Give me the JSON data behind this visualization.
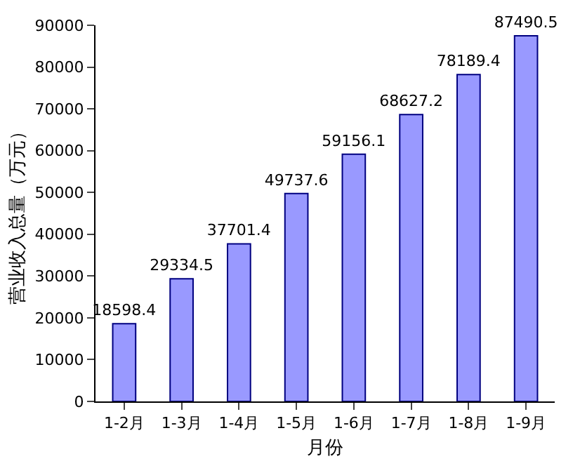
{
  "chart_data": {
    "type": "bar",
    "categories": [
      "1-2月",
      "1-3月",
      "1-4月",
      "1-5月",
      "1-6月",
      "1-7月",
      "1-8月",
      "1-9月"
    ],
    "values": [
      18598.4,
      29334.5,
      37701.4,
      49737.6,
      59156.1,
      68627.2,
      78189.4,
      87490.5
    ],
    "color": "#9999ff",
    "xlabel": "月份",
    "ylabel": "营业收入总量（万元）",
    "ylim": [
      0,
      90000
    ],
    "yticks": [
      0,
      10000,
      20000,
      30000,
      40000,
      50000,
      60000,
      70000,
      80000,
      90000
    ],
    "data_labels": true
  }
}
